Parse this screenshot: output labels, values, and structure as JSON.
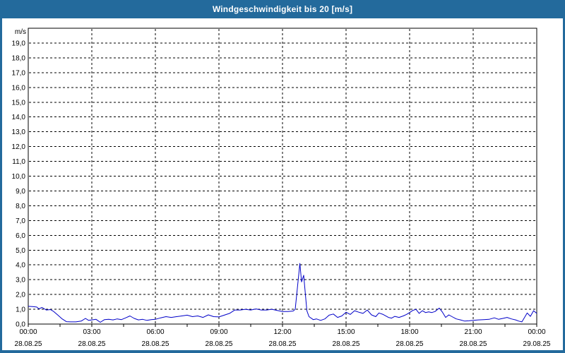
{
  "window": {
    "title": "Windgeschwindigkeit bis 20 [m/s]"
  },
  "colors": {
    "titlebar_bg": "#236A9C",
    "frame_border": "#236A9C",
    "plot_bg": "#FFFFFF",
    "grid": "#000000",
    "axis_text": "#000000",
    "title_text": "#FFFFFF",
    "line": "#0000C8"
  },
  "chart_data": {
    "type": "line",
    "title": "Windgeschwindigkeit bis 20 [m/s]",
    "ylabel": "m/s",
    "xlabel": "",
    "ylim": [
      0,
      20
    ],
    "xlim_hours": [
      0,
      24
    ],
    "grid": "dashed",
    "legend": "none",
    "y_ticks": [
      {
        "v": 0,
        "label": "0,0"
      },
      {
        "v": 1,
        "label": "1,0"
      },
      {
        "v": 2,
        "label": "2,0"
      },
      {
        "v": 3,
        "label": "3,0"
      },
      {
        "v": 4,
        "label": "4,0"
      },
      {
        "v": 5,
        "label": "5,0"
      },
      {
        "v": 6,
        "label": "6,0"
      },
      {
        "v": 7,
        "label": "7,0"
      },
      {
        "v": 8,
        "label": "8,0"
      },
      {
        "v": 9,
        "label": "9,0"
      },
      {
        "v": 10,
        "label": "10,0"
      },
      {
        "v": 11,
        "label": "11,0"
      },
      {
        "v": 12,
        "label": "12,0"
      },
      {
        "v": 13,
        "label": "13,0"
      },
      {
        "v": 14,
        "label": "14,0"
      },
      {
        "v": 15,
        "label": "15,0"
      },
      {
        "v": 16,
        "label": "16,0"
      },
      {
        "v": 17,
        "label": "17,0"
      },
      {
        "v": 18,
        "label": "18,0"
      },
      {
        "v": 19,
        "label": "19,0"
      }
    ],
    "x_ticks": [
      {
        "h": 0,
        "time": "00:00",
        "date": "28.08.25"
      },
      {
        "h": 3,
        "time": "03:00",
        "date": "28.08.25"
      },
      {
        "h": 6,
        "time": "06:00",
        "date": "28.08.25"
      },
      {
        "h": 9,
        "time": "09:00",
        "date": "28.08.25"
      },
      {
        "h": 12,
        "time": "12:00",
        "date": "28.08.25"
      },
      {
        "h": 15,
        "time": "15:00",
        "date": "28.08.25"
      },
      {
        "h": 18,
        "time": "18:00",
        "date": "28.08.25"
      },
      {
        "h": 21,
        "time": "21:00",
        "date": "28.08.25"
      },
      {
        "h": 24,
        "time": "00:00",
        "date": "29.08.25"
      }
    ],
    "minor_tick_interval_hours": 1.5,
    "series": [
      {
        "name": "Windgeschwindigkeit",
        "unit": "m/s",
        "color": "#0000C8",
        "points": [
          [
            0,
            1.2
          ],
          [
            0.2,
            1.18
          ],
          [
            0.4,
            1.15
          ],
          [
            0.5,
            1.03
          ],
          [
            0.65,
            1.12
          ],
          [
            0.85,
            0.95
          ],
          [
            1.05,
            0.98
          ],
          [
            1.2,
            0.85
          ],
          [
            1.4,
            0.6
          ],
          [
            1.6,
            0.35
          ],
          [
            1.8,
            0.16
          ],
          [
            2.0,
            0.15
          ],
          [
            2.25,
            0.15
          ],
          [
            2.5,
            0.2
          ],
          [
            2.7,
            0.38
          ],
          [
            2.85,
            0.25
          ],
          [
            3.0,
            0.28
          ],
          [
            3.2,
            0.32
          ],
          [
            3.4,
            0.12
          ],
          [
            3.6,
            0.3
          ],
          [
            3.8,
            0.32
          ],
          [
            4.0,
            0.28
          ],
          [
            4.2,
            0.35
          ],
          [
            4.4,
            0.3
          ],
          [
            4.6,
            0.42
          ],
          [
            4.8,
            0.55
          ],
          [
            5.0,
            0.38
          ],
          [
            5.2,
            0.28
          ],
          [
            5.4,
            0.32
          ],
          [
            5.6,
            0.25
          ],
          [
            5.8,
            0.3
          ],
          [
            6.0,
            0.32
          ],
          [
            6.25,
            0.42
          ],
          [
            6.5,
            0.5
          ],
          [
            6.75,
            0.45
          ],
          [
            7.0,
            0.5
          ],
          [
            7.25,
            0.55
          ],
          [
            7.5,
            0.6
          ],
          [
            7.75,
            0.5
          ],
          [
            8.0,
            0.55
          ],
          [
            8.25,
            0.45
          ],
          [
            8.5,
            0.62
          ],
          [
            8.75,
            0.5
          ],
          [
            9.0,
            0.48
          ],
          [
            9.25,
            0.6
          ],
          [
            9.5,
            0.72
          ],
          [
            9.75,
            0.95
          ],
          [
            10.0,
            0.95
          ],
          [
            10.25,
            1.0
          ],
          [
            10.5,
            0.95
          ],
          [
            10.75,
            1.02
          ],
          [
            11.0,
            0.95
          ],
          [
            11.25,
            0.95
          ],
          [
            11.5,
            1.0
          ],
          [
            11.75,
            0.92
          ],
          [
            12.0,
            0.85
          ],
          [
            12.25,
            0.85
          ],
          [
            12.5,
            0.88
          ],
          [
            12.6,
            1.0
          ],
          [
            12.82,
            4.1
          ],
          [
            12.9,
            2.85
          ],
          [
            13.0,
            3.3
          ],
          [
            13.15,
            0.9
          ],
          [
            13.25,
            0.5
          ],
          [
            13.45,
            0.3
          ],
          [
            13.6,
            0.35
          ],
          [
            13.8,
            0.25
          ],
          [
            14.0,
            0.35
          ],
          [
            14.2,
            0.6
          ],
          [
            14.4,
            0.68
          ],
          [
            14.6,
            0.45
          ],
          [
            14.8,
            0.55
          ],
          [
            15.0,
            0.8
          ],
          [
            15.2,
            0.65
          ],
          [
            15.4,
            0.9
          ],
          [
            15.6,
            0.8
          ],
          [
            15.8,
            0.72
          ],
          [
            16.0,
            0.95
          ],
          [
            16.2,
            0.62
          ],
          [
            16.4,
            0.5
          ],
          [
            16.55,
            0.75
          ],
          [
            16.75,
            0.65
          ],
          [
            17.0,
            0.45
          ],
          [
            17.15,
            0.4
          ],
          [
            17.3,
            0.52
          ],
          [
            17.5,
            0.45
          ],
          [
            17.7,
            0.55
          ],
          [
            17.85,
            0.65
          ],
          [
            18.0,
            0.78
          ],
          [
            18.15,
            0.92
          ],
          [
            18.3,
            1.0
          ],
          [
            18.45,
            0.72
          ],
          [
            18.6,
            0.9
          ],
          [
            18.75,
            0.78
          ],
          [
            18.9,
            0.82
          ],
          [
            19.05,
            0.78
          ],
          [
            19.2,
            0.85
          ],
          [
            19.4,
            1.08
          ],
          [
            19.55,
            0.8
          ],
          [
            19.7,
            0.45
          ],
          [
            19.85,
            0.62
          ],
          [
            20.0,
            0.5
          ],
          [
            20.2,
            0.35
          ],
          [
            20.4,
            0.28
          ],
          [
            20.6,
            0.2
          ],
          [
            20.8,
            0.22
          ],
          [
            21.0,
            0.25
          ],
          [
            21.25,
            0.28
          ],
          [
            21.5,
            0.3
          ],
          [
            21.75,
            0.32
          ],
          [
            22.0,
            0.42
          ],
          [
            22.2,
            0.32
          ],
          [
            22.4,
            0.38
          ],
          [
            22.6,
            0.45
          ],
          [
            22.8,
            0.35
          ],
          [
            23.0,
            0.28
          ],
          [
            23.15,
            0.2
          ],
          [
            23.3,
            0.15
          ],
          [
            23.55,
            0.75
          ],
          [
            23.7,
            0.52
          ],
          [
            23.85,
            0.9
          ],
          [
            24.0,
            0.72
          ]
        ]
      }
    ]
  }
}
